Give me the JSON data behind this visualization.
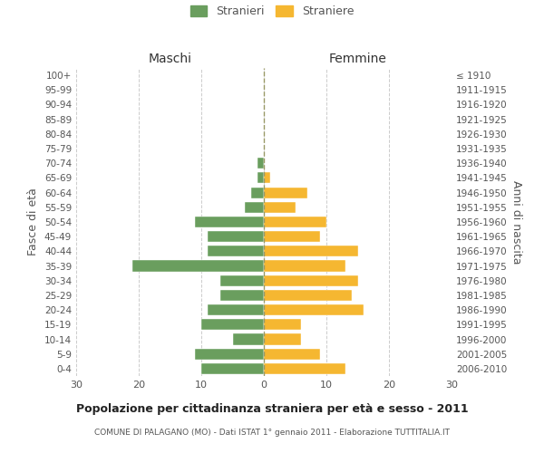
{
  "age_groups": [
    "0-4",
    "5-9",
    "10-14",
    "15-19",
    "20-24",
    "25-29",
    "30-34",
    "35-39",
    "40-44",
    "45-49",
    "50-54",
    "55-59",
    "60-64",
    "65-69",
    "70-74",
    "75-79",
    "80-84",
    "85-89",
    "90-94",
    "95-99",
    "100+"
  ],
  "birth_years": [
    "2006-2010",
    "2001-2005",
    "1996-2000",
    "1991-1995",
    "1986-1990",
    "1981-1985",
    "1976-1980",
    "1971-1975",
    "1966-1970",
    "1961-1965",
    "1956-1960",
    "1951-1955",
    "1946-1950",
    "1941-1945",
    "1936-1940",
    "1931-1935",
    "1926-1930",
    "1921-1925",
    "1916-1920",
    "1911-1915",
    "≤ 1910"
  ],
  "males": [
    10,
    11,
    5,
    10,
    9,
    7,
    7,
    21,
    9,
    9,
    11,
    3,
    2,
    1,
    1,
    0,
    0,
    0,
    0,
    0,
    0
  ],
  "females": [
    13,
    9,
    6,
    6,
    16,
    14,
    15,
    13,
    15,
    9,
    10,
    5,
    7,
    1,
    0,
    0,
    0,
    0,
    0,
    0,
    0
  ],
  "male_color": "#6a9e5e",
  "female_color": "#f5b731",
  "bar_height": 0.75,
  "xlim": 30,
  "title": "Popolazione per cittadinanza straniera per età e sesso - 2011",
  "subtitle": "COMUNE DI PALAGANO (MO) - Dati ISTAT 1° gennaio 2011 - Elaborazione TUTTITALIA.IT",
  "ylabel_left": "Fasce di età",
  "ylabel_right": "Anni di nascita",
  "header_maschi": "Maschi",
  "header_femmine": "Femmine",
  "legend_stranieri": "Stranieri",
  "legend_straniere": "Straniere",
  "grid_color": "#cccccc",
  "background_color": "#ffffff",
  "text_color": "#555555",
  "header_color": "#333333"
}
